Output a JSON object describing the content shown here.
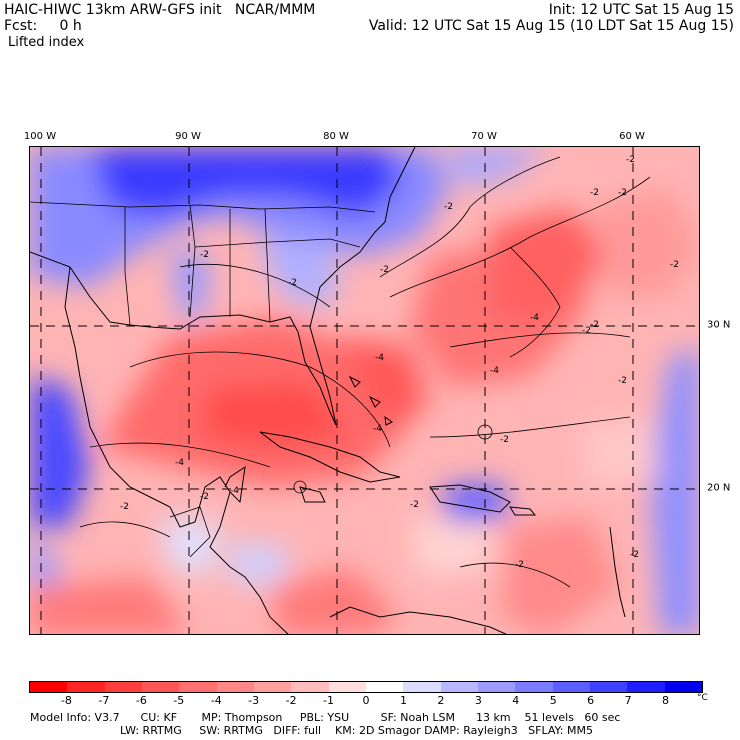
{
  "header": {
    "title": "HAIC-HIWC 13km ARW-GFS init   NCAR/MMM",
    "forecast": "Fcst:     0 h",
    "field": "Lifted index",
    "init": "Init: 12 UTC Sat 15 Aug 15",
    "valid": "Valid: 12 UTC Sat 15 Aug 15 (10 LDT Sat 15 Aug 15)"
  },
  "map": {
    "projection": "lat-lon",
    "lon_labels": [
      "100 W",
      "90 W",
      "80 W",
      "70 W",
      "60 W"
    ],
    "lat_labels": [
      "30 N",
      "20 N"
    ],
    "contour_labels": [
      "-2",
      "-2",
      "-2",
      "-2",
      "-4",
      "-2",
      "-4",
      "-2",
      "-2",
      "-4",
      "-2",
      "-4",
      "-4",
      "-2",
      "-2",
      "-2",
      "-4",
      "-2",
      "-2",
      "-2",
      "-2",
      "-2",
      "-2"
    ],
    "colors": {
      "land_outline": "#000000",
      "grid": "#000000"
    }
  },
  "colorbar": {
    "labels": [
      "-8",
      "-7",
      "-6",
      "-5",
      "-4",
      "-3",
      "-2",
      "-1",
      "0",
      "1",
      "2",
      "3",
      "4",
      "5",
      "6",
      "7",
      "8"
    ],
    "unit": "°C",
    "colors": [
      "#ff0000",
      "#ff2525",
      "#ff3e3e",
      "#ff5656",
      "#ff7070",
      "#ff8787",
      "#ffa0a0",
      "#ffbcbc",
      "#ffdede",
      "#ffffff",
      "#dcdcff",
      "#b8b8ff",
      "#9a9aff",
      "#7c7cff",
      "#5e5eff",
      "#4040ff",
      "#2020ff",
      "#0000ee"
    ]
  },
  "footer": {
    "line1": "Model Info: V3.7      CU: KF       MP: Thompson     PBL: YSU         SF: Noah LSM      13 km    51 levels   60 sec",
    "line2": "LW: RRTMG     SW: RRTMG   DIFF: full    KM: 2D Smagor DAMP: Rayleigh3   SFLAY: MM5"
  }
}
